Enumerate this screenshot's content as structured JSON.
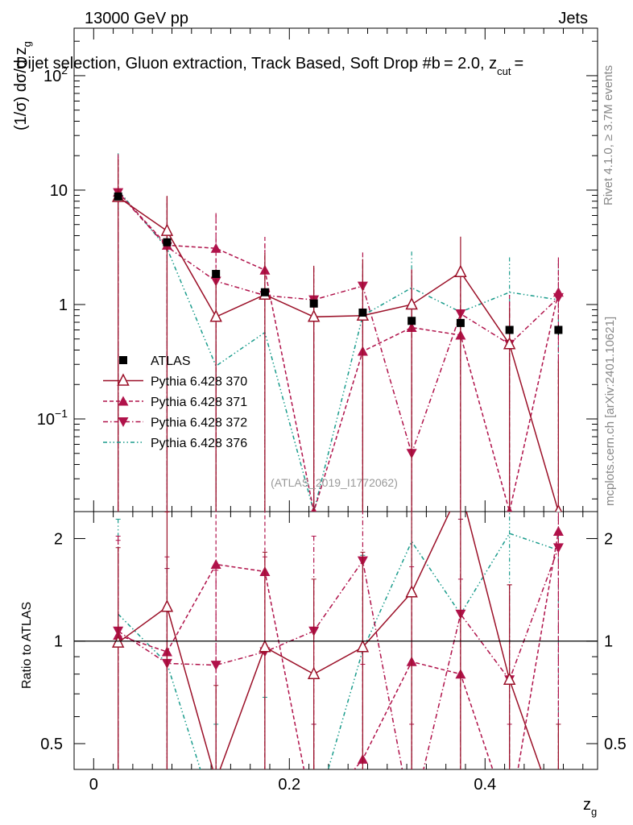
{
  "header": {
    "left": "13000 GeV pp",
    "right": "Jets",
    "title": "Dijet selection, Gluon extraction, Track Based, Soft Drop #b",
    "title_tail": "= 2.0, z",
    "title_sub": "cut",
    "title_end": "="
  },
  "side": {
    "rivet": "Rivet 4.1.0, ≥ 3.7M events",
    "mcplots": "mcplots.cern.ch [arXiv:2401.10621]"
  },
  "watermark": "(ATLAS_2019_I1772062)",
  "axes": {
    "ylabel_main": "(1/σ) dσ/d z",
    "ylabel_main_sub": "g",
    "ylabel_ratio": "Ratio to ATLAS",
    "xlabel": "z",
    "xlabel_sub": "g"
  },
  "colors": {
    "atlas": "#000000",
    "p370": "#9b1028",
    "p371": "#b0124a",
    "p372": "#b0124a",
    "p376": "#1a9c8c"
  },
  "chart_data": {
    "type": "line",
    "x_scale": "linear",
    "xlim": [
      -0.02,
      0.515
    ],
    "main_panel": {
      "y_scale": "log",
      "ylim": [
        0.0155,
        260
      ]
    },
    "ratio_panel": {
      "y_scale": "log",
      "ylim": [
        0.42,
        2.4
      ]
    },
    "x": [
      0.025,
      0.075,
      0.125,
      0.175,
      0.225,
      0.275,
      0.325,
      0.375,
      0.425,
      0.475
    ],
    "x_ticks": [
      0,
      0.2,
      0.4
    ],
    "x_tick_labels": [
      "0",
      "0.2",
      "0.4"
    ],
    "main_y_ticks": [
      0.1,
      1,
      10,
      100
    ],
    "main_y_tick_labels": [
      "10^-1",
      "1",
      "10",
      "10^2"
    ],
    "ratio_y_ticks": [
      0.5,
      1,
      2
    ],
    "ratio_y_tick_labels": [
      "0.5",
      "1",
      "2"
    ],
    "series": [
      {
        "key": "atlas",
        "name": "ATLAS",
        "marker": "square",
        "line": "none",
        "values": [
          8.8,
          3.5,
          1.85,
          1.28,
          1.02,
          0.85,
          0.72,
          0.69,
          0.6,
          0.6
        ],
        "err": [
          0.5,
          0.2,
          0.1,
          0.08,
          0.07,
          0.06,
          0.05,
          0.05,
          0.05,
          0.06
        ],
        "ratio": [
          1,
          1,
          1,
          1,
          1,
          1,
          1,
          1,
          1,
          1
        ]
      },
      {
        "key": "p370",
        "name": "Pythia 6.428 370",
        "marker": "triangle-up-open",
        "line": "solid",
        "values": [
          8.7,
          4.4,
          0.78,
          1.22,
          0.78,
          0.8,
          1.0,
          1.92,
          0.45,
          0.0155
        ],
        "err_up": [
          10,
          4.5,
          0.9,
          1.6,
          1.4,
          1.7,
          1.0,
          2.0,
          0.5,
          0.3
        ],
        "ratio": [
          0.99,
          1.26,
          0.39,
          0.96,
          0.8,
          0.96,
          1.39,
          2.8,
          0.77,
          0.3
        ]
      },
      {
        "key": "p371",
        "name": "Pythia 6.428 371",
        "marker": "triangle-up",
        "line": "dashed",
        "values": [
          9.6,
          3.3,
          3.1,
          2.0,
          0.0155,
          0.39,
          0.63,
          0.54,
          0.0155,
          1.28
        ],
        "err_up": [
          11,
          5.5,
          3.2,
          1.9,
          1.1,
          1.5,
          1.4,
          1.1,
          1.2,
          1.3
        ],
        "ratio": [
          1.04,
          0.93,
          1.68,
          1.6,
          0.3,
          0.45,
          0.87,
          0.8,
          0.3,
          2.1
        ]
      },
      {
        "key": "p372",
        "name": "Pythia 6.428 372",
        "marker": "triangle-down",
        "line": "dashdot",
        "values": [
          9.5,
          3.2,
          1.6,
          1.2,
          1.1,
          1.45,
          0.05,
          0.83,
          0.45,
          1.15
        ],
        "err_up": [
          10,
          5,
          4.5,
          2.2,
          1.0,
          1.4,
          1.3,
          1.1,
          0.6,
          1.3
        ],
        "ratio": [
          1.07,
          0.86,
          0.85,
          0.93,
          1.07,
          1.72,
          0.3,
          1.2,
          0.77,
          1.88
        ]
      },
      {
        "key": "p376",
        "name": "Pythia 6.428 376",
        "marker": "none",
        "line": "dashdotdot",
        "values": [
          10.0,
          3.1,
          0.29,
          0.57,
          0.0155,
          0.8,
          1.4,
          0.86,
          1.28,
          1.1
        ],
        "err_up": [
          11,
          4.5,
          1.5,
          1.8,
          1.2,
          1.4,
          1.5,
          1.1,
          1.3,
          1.2
        ],
        "ratio": [
          1.2,
          0.86,
          0.3,
          0.36,
          0.3,
          0.94,
          1.96,
          1.2,
          2.07,
          1.85
        ]
      }
    ]
  }
}
